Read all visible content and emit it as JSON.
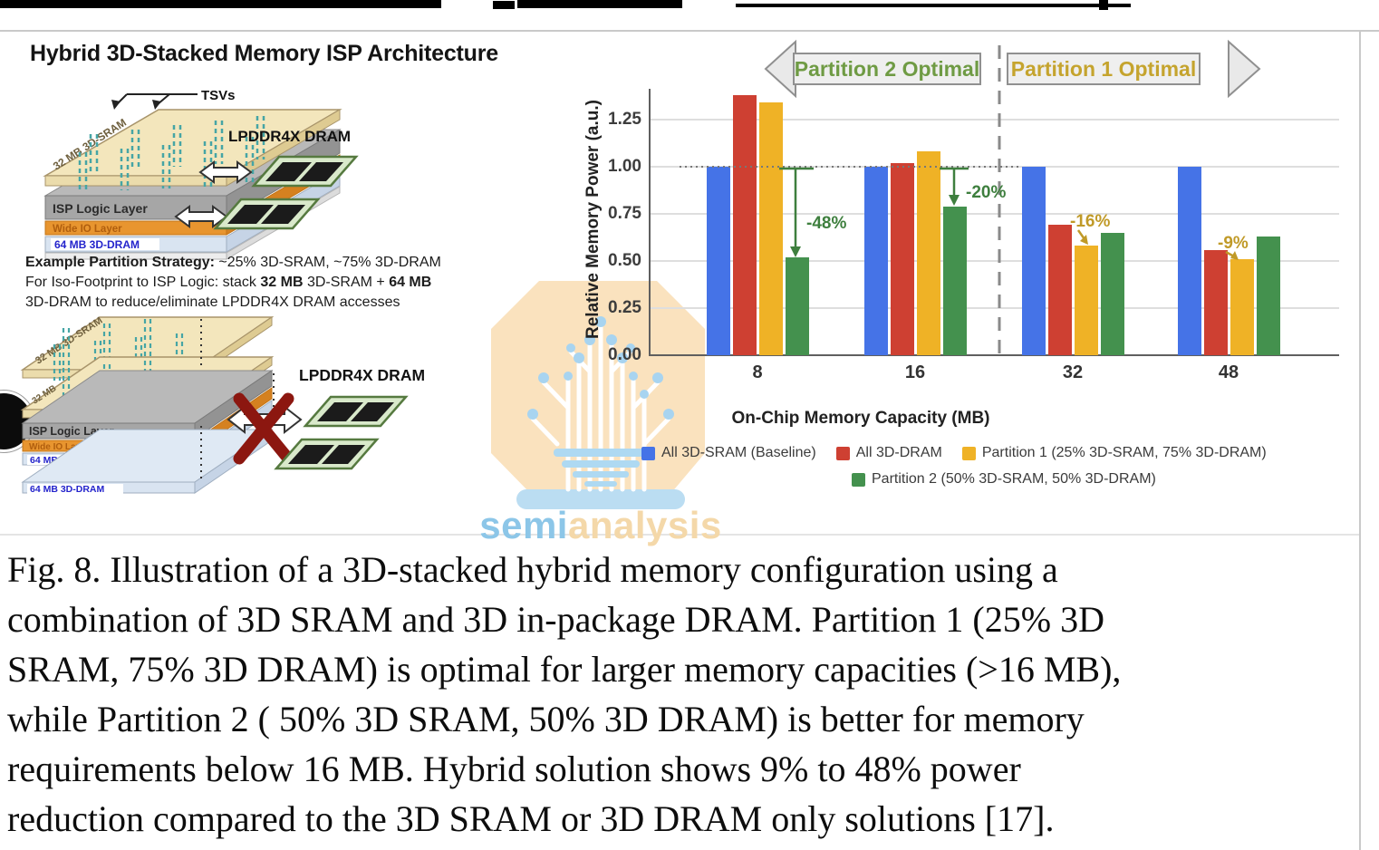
{
  "diagram": {
    "title": "Hybrid 3D-Stacked Memory ISP Architecture",
    "tsv_label": "TSVs",
    "lpddr_label_top": "LPDDR4X DRAM",
    "lpddr_label_bottom": "LPDDR4X DRAM",
    "stack_top": {
      "sram": "32 MB 3D-SRAM",
      "isp": "ISP Logic Layer",
      "wide_io": "Wide IO Layer",
      "dram": "64 MB 3D-DRAM"
    },
    "stack_bottom": {
      "sram": "32 MB 3D-SRAM",
      "sram2": "32 MB",
      "isp": "ISP Logic Layer",
      "wide_io": "Wide IO Layer",
      "dram": "64 MB 3D-DRAM",
      "dram2": "64 MB 3D-DRAM"
    },
    "strategy": {
      "l1_bold": "Example Partition Strategy:",
      "l1_rest": " ~25% 3D-SRAM, ~75% 3D-DRAM",
      "l2_pre": "For Iso-Footprint to ISP Logic: stack ",
      "l2_b1": "32 MB",
      "l2_mid": " 3D-SRAM + ",
      "l2_b2": "64 MB",
      "l3": "3D-DRAM to reduce/eliminate LPDDR4X DRAM accesses"
    }
  },
  "chart_data": {
    "type": "bar",
    "xlabel": "On-Chip Memory Capacity (MB)",
    "ylabel": "Relative Memory Power (a.u.)",
    "categories": [
      "8",
      "16",
      "32",
      "48"
    ],
    "series": [
      {
        "name": "All 3D-SRAM (Baseline)",
        "color": "#4573E7",
        "values": [
          1.0,
          1.0,
          1.0,
          1.0
        ]
      },
      {
        "name": "All 3D-DRAM",
        "color": "#CE4032",
        "values": [
          1.38,
          1.02,
          0.69,
          0.56
        ]
      },
      {
        "name": "Partition 1 (25% 3D-SRAM, 75% 3D-DRAM)",
        "color": "#EFB226",
        "values": [
          1.34,
          1.08,
          0.58,
          0.51
        ]
      },
      {
        "name": "Partition 2 (50% 3D-SRAM, 50% 3D-DRAM)",
        "color": "#44914E",
        "values": [
          0.52,
          0.79,
          0.65,
          0.63
        ]
      }
    ],
    "ylim": [
      0,
      1.43
    ],
    "yticks": [
      0,
      0.25,
      0.5,
      0.75,
      1.0,
      1.25
    ],
    "ytick_labels": [
      "0.00",
      "0.25",
      "0.50",
      "0.75",
      "1.00",
      "1.25"
    ],
    "baseline_value": 1.0,
    "grid": "horizontal",
    "legend_position": "bottom",
    "region_labels": {
      "left": {
        "text": "Partition 2 Optimal",
        "color": "#6F9B44"
      },
      "right": {
        "text": "Partition 1 Optimal",
        "color": "#C5A42E"
      }
    },
    "annotations": [
      {
        "text": "-48%",
        "category": "8",
        "color": "#3E7F3E"
      },
      {
        "text": "-20%",
        "category": "16",
        "color": "#3E7F3E"
      },
      {
        "text": "-16%",
        "category": "32",
        "color": "#C09A28"
      },
      {
        "text": "-9%",
        "category": "48",
        "color": "#C09A28"
      }
    ]
  },
  "watermark": {
    "semi": "semi",
    "analysis": "analysis",
    "bulb_color": "#FAE2BE",
    "accent_color": "#A8D4F0"
  },
  "caption": {
    "lines": [
      "Fig. 8. Illustration of a 3D-stacked hybrid memory configuration using a",
      "combination of 3D SRAM and 3D in-package DRAM. Partition 1 (25% 3D",
      "SRAM, 75% 3D DRAM) is optimal for larger memory capacities (>16 MB),",
      "while Partition 2 ( 50% 3D SRAM, 50% 3D DRAM) is better for memory",
      "requirements below 16 MB. Hybrid solution shows 9% to 48% power",
      "reduction compared to the 3D SRAM or 3D DRAM only solutions [17]."
    ]
  }
}
